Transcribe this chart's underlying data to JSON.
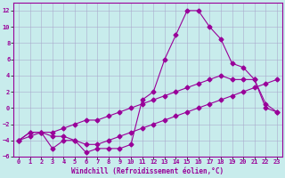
{
  "xlabel": "Windchill (Refroidissement éolien,°C)",
  "ylabel": "",
  "bg_color": "#c8ecec",
  "line_color": "#990099",
  "grid_color": "#aaaacc",
  "xlim": [
    -0.5,
    23.5
  ],
  "ylim": [
    -6,
    13
  ],
  "xticks": [
    0,
    1,
    2,
    3,
    4,
    5,
    6,
    7,
    8,
    9,
    10,
    11,
    12,
    13,
    14,
    15,
    16,
    17,
    18,
    19,
    20,
    21,
    22,
    23
  ],
  "yticks": [
    -6,
    -4,
    -2,
    0,
    2,
    4,
    6,
    8,
    10,
    12
  ],
  "line1_x": [
    0,
    1,
    2,
    3,
    4,
    5,
    6,
    7,
    8,
    9,
    10,
    11,
    12,
    13,
    14,
    15,
    16,
    17,
    18,
    19,
    20,
    21,
    22,
    23
  ],
  "line1_y": [
    -4.0,
    -3.0,
    -3.0,
    -3.5,
    -3.5,
    -4.0,
    -4.5,
    -4.5,
    -4.0,
    -3.5,
    -3.0,
    -2.5,
    -2.0,
    -1.5,
    -1.0,
    -0.5,
    0.0,
    0.5,
    1.0,
    1.5,
    2.0,
    2.5,
    3.0,
    3.5
  ],
  "line2_x": [
    0,
    1,
    2,
    3,
    4,
    5,
    6,
    7,
    8,
    9,
    10,
    11,
    12,
    13,
    14,
    15,
    16,
    17,
    18,
    19,
    20,
    21,
    22,
    23
  ],
  "line2_y": [
    -4.0,
    -3.0,
    -3.0,
    -3.0,
    -2.5,
    -2.0,
    -1.5,
    -1.5,
    -1.0,
    -0.5,
    0.0,
    0.5,
    1.0,
    1.5,
    2.0,
    2.5,
    3.0,
    3.5,
    4.0,
    3.5,
    3.5,
    3.5,
    0.5,
    -0.5
  ],
  "line3_x": [
    0,
    1,
    2,
    3,
    4,
    5,
    6,
    7,
    8,
    9,
    10,
    11,
    12,
    13,
    14,
    15,
    16,
    17,
    18,
    19,
    20,
    21,
    22,
    23
  ],
  "line3_y": [
    -4.0,
    -3.5,
    -3.0,
    -5.0,
    -4.0,
    -4.0,
    -5.5,
    -5.0,
    -5.0,
    -5.0,
    -4.5,
    1.0,
    2.0,
    6.0,
    9.0,
    12.0,
    12.0,
    10.0,
    8.5,
    5.5,
    5.0,
    3.5,
    0.0,
    -0.5
  ],
  "marker": "D",
  "markersize": 2.5,
  "linewidth": 0.8,
  "font_size": 5.5,
  "tick_font_size": 5.0
}
